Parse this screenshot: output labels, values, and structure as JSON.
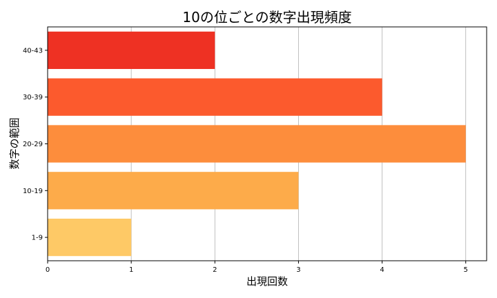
{
  "chart_data": {
    "type": "bar",
    "orientation": "horizontal",
    "title": "10の位ごとの数字出現頻度",
    "xlabel": "出現回数",
    "ylabel": "数字の範囲",
    "categories": [
      "1-9",
      "10-19",
      "20-29",
      "30-39",
      "40-43"
    ],
    "values": [
      1,
      3,
      5,
      4,
      2
    ],
    "colors": [
      "#fec966",
      "#fdab4a",
      "#fd8d3c",
      "#fc5a2d",
      "#ee3123"
    ],
    "xlim": [
      0,
      5.25
    ],
    "xticks": [
      0,
      1,
      2,
      3,
      4,
      5
    ],
    "grid": "x"
  }
}
